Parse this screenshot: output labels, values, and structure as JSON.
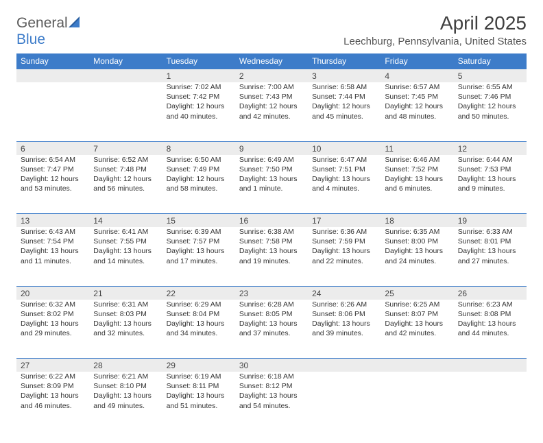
{
  "brand": {
    "part1": "General",
    "part2": "Blue"
  },
  "title": "April 2025",
  "location": "Leechburg, Pennsylvania, United States",
  "colors": {
    "header_bg": "#3d7cc9",
    "header_text": "#ffffff",
    "daynum_bg": "#ececec",
    "border": "#3d7cc9",
    "text": "#333333",
    "logo_gray": "#5a5a5a",
    "logo_blue": "#3d7cc9"
  },
  "weekdays": [
    "Sunday",
    "Monday",
    "Tuesday",
    "Wednesday",
    "Thursday",
    "Friday",
    "Saturday"
  ],
  "weeks": [
    [
      null,
      null,
      {
        "n": "1",
        "sr": "Sunrise: 7:02 AM",
        "ss": "Sunset: 7:42 PM",
        "d1": "Daylight: 12 hours",
        "d2": "and 40 minutes."
      },
      {
        "n": "2",
        "sr": "Sunrise: 7:00 AM",
        "ss": "Sunset: 7:43 PM",
        "d1": "Daylight: 12 hours",
        "d2": "and 42 minutes."
      },
      {
        "n": "3",
        "sr": "Sunrise: 6:58 AM",
        "ss": "Sunset: 7:44 PM",
        "d1": "Daylight: 12 hours",
        "d2": "and 45 minutes."
      },
      {
        "n": "4",
        "sr": "Sunrise: 6:57 AM",
        "ss": "Sunset: 7:45 PM",
        "d1": "Daylight: 12 hours",
        "d2": "and 48 minutes."
      },
      {
        "n": "5",
        "sr": "Sunrise: 6:55 AM",
        "ss": "Sunset: 7:46 PM",
        "d1": "Daylight: 12 hours",
        "d2": "and 50 minutes."
      }
    ],
    [
      {
        "n": "6",
        "sr": "Sunrise: 6:54 AM",
        "ss": "Sunset: 7:47 PM",
        "d1": "Daylight: 12 hours",
        "d2": "and 53 minutes."
      },
      {
        "n": "7",
        "sr": "Sunrise: 6:52 AM",
        "ss": "Sunset: 7:48 PM",
        "d1": "Daylight: 12 hours",
        "d2": "and 56 minutes."
      },
      {
        "n": "8",
        "sr": "Sunrise: 6:50 AM",
        "ss": "Sunset: 7:49 PM",
        "d1": "Daylight: 12 hours",
        "d2": "and 58 minutes."
      },
      {
        "n": "9",
        "sr": "Sunrise: 6:49 AM",
        "ss": "Sunset: 7:50 PM",
        "d1": "Daylight: 13 hours",
        "d2": "and 1 minute."
      },
      {
        "n": "10",
        "sr": "Sunrise: 6:47 AM",
        "ss": "Sunset: 7:51 PM",
        "d1": "Daylight: 13 hours",
        "d2": "and 4 minutes."
      },
      {
        "n": "11",
        "sr": "Sunrise: 6:46 AM",
        "ss": "Sunset: 7:52 PM",
        "d1": "Daylight: 13 hours",
        "d2": "and 6 minutes."
      },
      {
        "n": "12",
        "sr": "Sunrise: 6:44 AM",
        "ss": "Sunset: 7:53 PM",
        "d1": "Daylight: 13 hours",
        "d2": "and 9 minutes."
      }
    ],
    [
      {
        "n": "13",
        "sr": "Sunrise: 6:43 AM",
        "ss": "Sunset: 7:54 PM",
        "d1": "Daylight: 13 hours",
        "d2": "and 11 minutes."
      },
      {
        "n": "14",
        "sr": "Sunrise: 6:41 AM",
        "ss": "Sunset: 7:55 PM",
        "d1": "Daylight: 13 hours",
        "d2": "and 14 minutes."
      },
      {
        "n": "15",
        "sr": "Sunrise: 6:39 AM",
        "ss": "Sunset: 7:57 PM",
        "d1": "Daylight: 13 hours",
        "d2": "and 17 minutes."
      },
      {
        "n": "16",
        "sr": "Sunrise: 6:38 AM",
        "ss": "Sunset: 7:58 PM",
        "d1": "Daylight: 13 hours",
        "d2": "and 19 minutes."
      },
      {
        "n": "17",
        "sr": "Sunrise: 6:36 AM",
        "ss": "Sunset: 7:59 PM",
        "d1": "Daylight: 13 hours",
        "d2": "and 22 minutes."
      },
      {
        "n": "18",
        "sr": "Sunrise: 6:35 AM",
        "ss": "Sunset: 8:00 PM",
        "d1": "Daylight: 13 hours",
        "d2": "and 24 minutes."
      },
      {
        "n": "19",
        "sr": "Sunrise: 6:33 AM",
        "ss": "Sunset: 8:01 PM",
        "d1": "Daylight: 13 hours",
        "d2": "and 27 minutes."
      }
    ],
    [
      {
        "n": "20",
        "sr": "Sunrise: 6:32 AM",
        "ss": "Sunset: 8:02 PM",
        "d1": "Daylight: 13 hours",
        "d2": "and 29 minutes."
      },
      {
        "n": "21",
        "sr": "Sunrise: 6:31 AM",
        "ss": "Sunset: 8:03 PM",
        "d1": "Daylight: 13 hours",
        "d2": "and 32 minutes."
      },
      {
        "n": "22",
        "sr": "Sunrise: 6:29 AM",
        "ss": "Sunset: 8:04 PM",
        "d1": "Daylight: 13 hours",
        "d2": "and 34 minutes."
      },
      {
        "n": "23",
        "sr": "Sunrise: 6:28 AM",
        "ss": "Sunset: 8:05 PM",
        "d1": "Daylight: 13 hours",
        "d2": "and 37 minutes."
      },
      {
        "n": "24",
        "sr": "Sunrise: 6:26 AM",
        "ss": "Sunset: 8:06 PM",
        "d1": "Daylight: 13 hours",
        "d2": "and 39 minutes."
      },
      {
        "n": "25",
        "sr": "Sunrise: 6:25 AM",
        "ss": "Sunset: 8:07 PM",
        "d1": "Daylight: 13 hours",
        "d2": "and 42 minutes."
      },
      {
        "n": "26",
        "sr": "Sunrise: 6:23 AM",
        "ss": "Sunset: 8:08 PM",
        "d1": "Daylight: 13 hours",
        "d2": "and 44 minutes."
      }
    ],
    [
      {
        "n": "27",
        "sr": "Sunrise: 6:22 AM",
        "ss": "Sunset: 8:09 PM",
        "d1": "Daylight: 13 hours",
        "d2": "and 46 minutes."
      },
      {
        "n": "28",
        "sr": "Sunrise: 6:21 AM",
        "ss": "Sunset: 8:10 PM",
        "d1": "Daylight: 13 hours",
        "d2": "and 49 minutes."
      },
      {
        "n": "29",
        "sr": "Sunrise: 6:19 AM",
        "ss": "Sunset: 8:11 PM",
        "d1": "Daylight: 13 hours",
        "d2": "and 51 minutes."
      },
      {
        "n": "30",
        "sr": "Sunrise: 6:18 AM",
        "ss": "Sunset: 8:12 PM",
        "d1": "Daylight: 13 hours",
        "d2": "and 54 minutes."
      },
      null,
      null,
      null
    ]
  ]
}
